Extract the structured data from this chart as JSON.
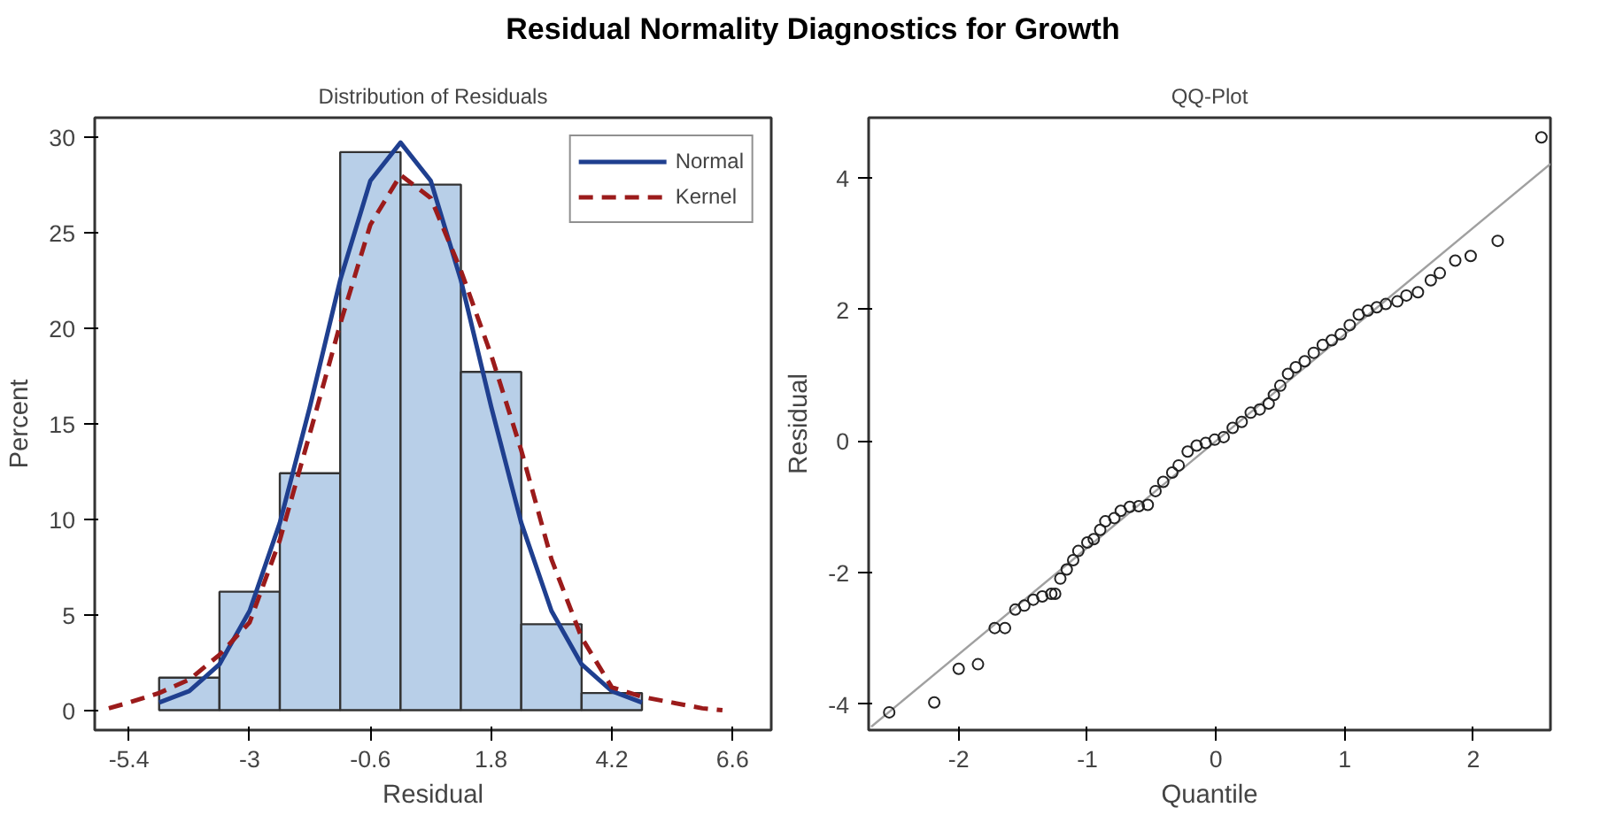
{
  "chart_data": [
    {
      "type": "histogram",
      "title": "Residual Normality Diagnostics for Growth",
      "subtitle": "Distribution of Residuals",
      "xlabel": "Residual",
      "ylabel": "Percent",
      "bins": [
        -4.8,
        -3.6,
        -2.4,
        -1.2,
        0,
        1.2,
        2.4,
        3.6,
        4.8
      ],
      "values": [
        1.7,
        6.2,
        12.4,
        29.2,
        27.5,
        17.7,
        4.5,
        0.9
      ],
      "color": "#b8cfe8",
      "xlim": [
        -6.08,
        7.37
      ],
      "ylim": [
        -1.04,
        31
      ],
      "xticks": [
        -5.4,
        -3,
        -0.6,
        1.8,
        4.2,
        6.6
      ],
      "yticks": [
        0,
        5,
        10,
        15,
        20,
        25,
        30
      ],
      "grid": false,
      "legend": "top right",
      "series": [
        {
          "name": "Normal",
          "type": "line",
          "line_style": "solid",
          "color": "#1f3f8f",
          "x": [
            -4.8,
            -4.2,
            -3.6,
            -3.0,
            -2.4,
            -1.8,
            -1.2,
            -0.6,
            0,
            0.6,
            1.2,
            1.8,
            2.4,
            3.0,
            3.6,
            4.2,
            4.8
          ],
          "values": [
            0.4,
            1,
            2.4,
            5.2,
            9.8,
            15.9,
            22.5,
            27.7,
            29.7,
            27.7,
            22.5,
            15.9,
            9.8,
            5.2,
            2.4,
            1,
            0.4
          ]
        },
        {
          "name": "Kernel",
          "type": "line",
          "line_style": "dashed",
          "color": "#9b1b1b",
          "x": [
            -5.8,
            -5.4,
            -4.8,
            -4.2,
            -3.6,
            -3.0,
            -2.4,
            -1.8,
            -1.2,
            -0.6,
            0,
            0.6,
            1.2,
            1.8,
            2.4,
            3.0,
            3.6,
            4.2,
            4.8,
            5.4,
            6.0,
            6.4
          ],
          "values": [
            0.1,
            0.4,
            0.9,
            1.6,
            2.9,
            4.6,
            8.9,
            14.5,
            20.2,
            25.4,
            28,
            26.8,
            23,
            18.6,
            13.6,
            7.9,
            3.8,
            1.2,
            0.7,
            0.4,
            0.1,
            0
          ]
        }
      ]
    },
    {
      "type": "scatter",
      "title": "QQ-Plot",
      "xlabel": "Quantile",
      "ylabel": "Residual",
      "xlim": [
        -2.7,
        2.6
      ],
      "ylim": [
        -4.39,
        4.91
      ],
      "xticks": [
        -2,
        -1,
        0,
        1,
        2
      ],
      "yticks": [
        -4,
        -2,
        0,
        2,
        4
      ],
      "grid": false,
      "marker": "circle",
      "series": [
        {
          "type": "line",
          "line_style": "solid",
          "marker": "none",
          "color": "#a0a0a0",
          "x": [
            -2.68,
            2.6
          ],
          "values": [
            -4.34,
            4.21
          ]
        },
        {
          "type": "scatter",
          "color": "#222222",
          "x": [
            -2.54,
            -2.19,
            -2.0,
            -1.85,
            -1.72,
            -1.64,
            -1.56,
            -1.49,
            -1.42,
            -1.35,
            -1.28,
            -1.25,
            -1.21,
            -1.16,
            -1.11,
            -1.07,
            -1.0,
            -0.95,
            -0.9,
            -0.86,
            -0.79,
            -0.74,
            -0.67,
            -0.6,
            -0.53,
            -0.47,
            -0.41,
            -0.34,
            -0.29,
            -0.22,
            -0.15,
            -0.08,
            -0.01,
            0.06,
            0.13,
            0.2,
            0.27,
            0.34,
            0.41,
            0.45,
            0.5,
            0.56,
            0.62,
            0.69,
            0.76,
            0.83,
            0.9,
            0.97,
            1.04,
            1.11,
            1.18,
            1.25,
            1.32,
            1.41,
            1.48,
            1.57,
            1.67,
            1.74,
            1.86,
            1.98,
            2.19,
            2.53
          ],
          "values": [
            -4.12,
            -3.97,
            -3.46,
            -3.39,
            -2.84,
            -2.84,
            -2.56,
            -2.5,
            -2.41,
            -2.36,
            -2.32,
            -2.32,
            -2.09,
            -1.95,
            -1.81,
            -1.67,
            -1.54,
            -1.49,
            -1.35,
            -1.22,
            -1.17,
            -1.06,
            -1.0,
            -0.99,
            -0.97,
            -0.76,
            -0.62,
            -0.48,
            -0.37,
            -0.16,
            -0.07,
            -0.03,
            0.02,
            0.06,
            0.2,
            0.29,
            0.43,
            0.48,
            0.57,
            0.7,
            0.84,
            1.02,
            1.12,
            1.21,
            1.34,
            1.46,
            1.53,
            1.62,
            1.76,
            1.92,
            1.98,
            2.03,
            2.08,
            2.12,
            2.21,
            2.26,
            2.44,
            2.55,
            2.74,
            2.81,
            3.04,
            4.61
          ]
        }
      ]
    }
  ]
}
